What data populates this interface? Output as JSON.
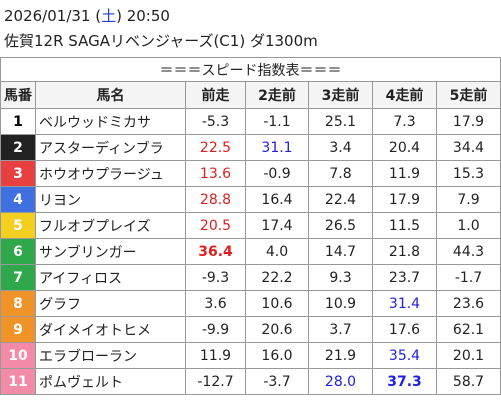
{
  "header": {
    "line1": [
      {
        "text": "2026/01/31 (",
        "color": "#222"
      },
      {
        "text": "土",
        "color": "#1f3fd0"
      },
      {
        "text": ") 20:50",
        "color": "#222"
      }
    ],
    "race": "佐賀12R SAGAリベンジャーズ(C1) ダ1300m"
  },
  "table": {
    "title": "＝＝＝スピード指数表＝＝＝",
    "columns": [
      "馬番",
      "馬名",
      "前走",
      "2走前",
      "3走前",
      "4走前",
      "5走前"
    ],
    "rows": [
      {
        "number": "1",
        "frame": "#ffffff",
        "number_color": "#000",
        "name": "ベルウッドミカサ",
        "values": [
          "-5.3",
          "-1.1",
          "25.1",
          "7.3",
          "17.9"
        ],
        "colors": [
          null,
          null,
          null,
          null,
          null
        ],
        "bold": []
      },
      {
        "number": "2",
        "frame": "#222222",
        "number_color": "#fff",
        "name": "アスターディンブラ",
        "values": [
          "22.5",
          "31.1",
          "3.4",
          "20.4",
          "34.4"
        ],
        "colors": [
          "#e02020",
          "#2020e0",
          null,
          null,
          null
        ],
        "bold": []
      },
      {
        "number": "3",
        "frame": "#e84040",
        "number_color": "#fff",
        "name": "ホウオウプラージュ",
        "values": [
          "13.6",
          "-0.9",
          "7.8",
          "11.9",
          "15.3"
        ],
        "colors": [
          "#e02020",
          null,
          null,
          null,
          null
        ],
        "bold": []
      },
      {
        "number": "4",
        "frame": "#3f6fe0",
        "number_color": "#fff",
        "name": "リヨン",
        "values": [
          "28.8",
          "16.4",
          "22.4",
          "17.9",
          "7.9"
        ],
        "colors": [
          "#e02020",
          null,
          null,
          null,
          null
        ],
        "bold": []
      },
      {
        "number": "5",
        "frame": "#f3d020",
        "number_color": "#fff",
        "name": "フルオブプレイズ",
        "values": [
          "20.5",
          "17.4",
          "26.5",
          "11.5",
          "1.0"
        ],
        "colors": [
          "#e02020",
          null,
          null,
          null,
          null
        ],
        "bold": []
      },
      {
        "number": "6",
        "frame": "#2ea84a",
        "number_color": "#fff",
        "name": "サンブリンガー",
        "values": [
          "36.4",
          "4.0",
          "14.7",
          "21.8",
          "44.3"
        ],
        "colors": [
          "#e02020",
          null,
          null,
          null,
          null
        ],
        "bold": [
          0
        ]
      },
      {
        "number": "7",
        "frame": "#2ea84a",
        "number_color": "#fff",
        "name": "アイフィロス",
        "values": [
          "-9.3",
          "22.2",
          "9.3",
          "23.7",
          "-1.7"
        ],
        "colors": [
          null,
          null,
          null,
          null,
          null
        ],
        "bold": []
      },
      {
        "number": "8",
        "frame": "#f0942a",
        "number_color": "#fff",
        "name": "グラフ",
        "values": [
          "3.6",
          "10.6",
          "10.9",
          "31.4",
          "23.6"
        ],
        "colors": [
          null,
          null,
          null,
          "#2020e0",
          null
        ],
        "bold": []
      },
      {
        "number": "9",
        "frame": "#f0942a",
        "number_color": "#fff",
        "name": "ダイメイオトヒメ",
        "values": [
          "-9.9",
          "20.6",
          "3.7",
          "17.6",
          "62.1"
        ],
        "colors": [
          null,
          null,
          null,
          null,
          null
        ],
        "bold": []
      },
      {
        "number": "10",
        "frame": "#f28aa8",
        "number_color": "#fff",
        "name": "エラブローラン",
        "values": [
          "11.9",
          "16.0",
          "21.9",
          "35.4",
          "20.1"
        ],
        "colors": [
          null,
          null,
          null,
          "#2020e0",
          null
        ],
        "bold": []
      },
      {
        "number": "11",
        "frame": "#f28aa8",
        "number_color": "#fff",
        "name": "ポムヴェルト",
        "values": [
          "-12.7",
          "-3.7",
          "28.0",
          "37.3",
          "58.7"
        ],
        "colors": [
          null,
          null,
          "#2020e0",
          "#2020e0",
          null
        ],
        "bold": [
          3
        ]
      }
    ]
  }
}
